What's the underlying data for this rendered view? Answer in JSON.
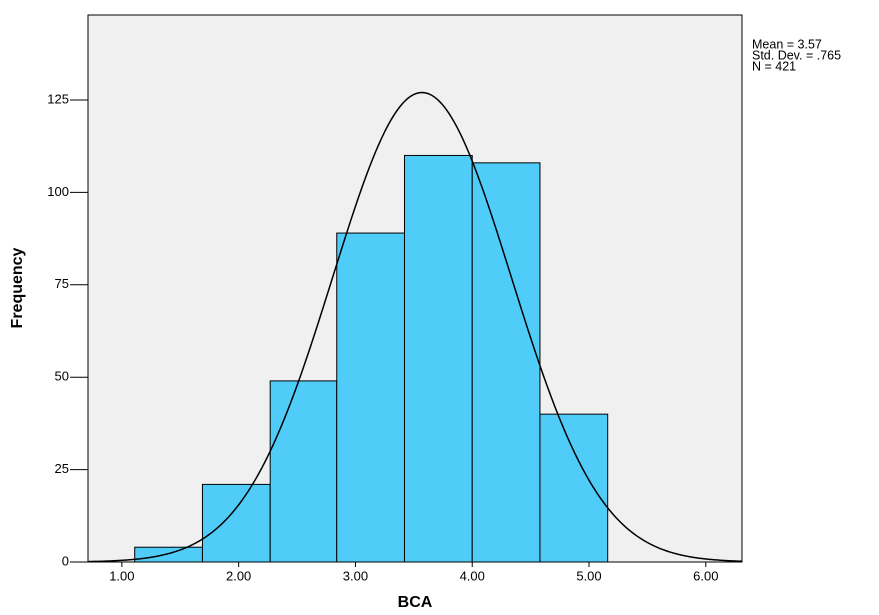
{
  "chart_data": {
    "type": "histogram",
    "x_label": "BCA",
    "y_label": "Frequency",
    "bins": [
      1.11,
      1.69,
      2.27,
      2.84,
      3.42,
      4.0,
      4.58,
      5.16
    ],
    "values": [
      4,
      21,
      49,
      89,
      110,
      108,
      40
    ],
    "color": "#4fcdf8",
    "xlim": [
      0.71,
      6.31
    ],
    "xticks": [
      {
        "value": 1,
        "label": "1.00"
      },
      {
        "value": 2,
        "label": "2.00"
      },
      {
        "value": 3,
        "label": "3.00"
      },
      {
        "value": 4,
        "label": "4.00"
      },
      {
        "value": 5,
        "label": "5.00"
      },
      {
        "value": 6,
        "label": "6.00"
      }
    ],
    "ylim": [
      0,
      148
    ],
    "yticks": [
      0,
      25,
      50,
      75,
      100,
      125
    ],
    "stats": [
      {
        "value": 3.57,
        "label": "Mean = 3.57"
      },
      {
        "value": 0.765,
        "label": "Std. Dev. = .765"
      },
      {
        "value": 421,
        "label": "N = 421"
      }
    ]
  }
}
